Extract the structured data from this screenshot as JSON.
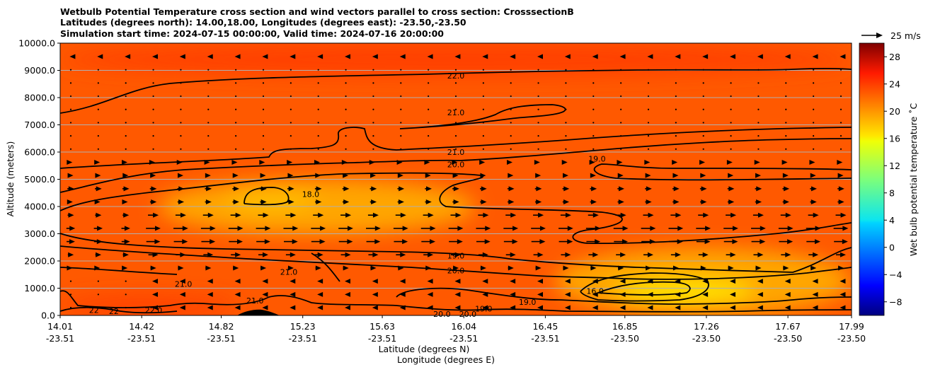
{
  "title": {
    "line1": "Wetbulb Potential Temperature cross section and wind vectors parallel to cross section: CrosssectionB",
    "line2": "Latitudes (degrees north): 14.00,18.00, Longitudes (degrees east): -23.50,-23.50",
    "line3": "Simulation start time: 2024-07-15 00:00:00, Valid time: 2024-07-16 20:00:00"
  },
  "quiver_key": {
    "label": "25 m/s"
  },
  "colorbar": {
    "label": "Wet bulb potential temperature ˚C",
    "ticks": [
      "28",
      "24",
      "20",
      "16",
      "12",
      "8",
      "4",
      "0",
      "−4",
      "−8"
    ],
    "range": [
      -10,
      30
    ],
    "colormap": "jet"
  },
  "chart_data": {
    "type": "contour",
    "title": "Wetbulb Potential Temperature cross section and wind vectors parallel to cross section: CrosssectionB",
    "xlabel_1": "Latitude (degrees N)",
    "xlabel_2": "Longitude (degrees E)",
    "ylabel": "Altitude (meters)",
    "x_tick_lat": [
      "14.01",
      "14.42",
      "14.82",
      "15.23",
      "15.63",
      "16.04",
      "16.45",
      "16.85",
      "17.26",
      "17.67",
      "17.99"
    ],
    "x_tick_lon": [
      "-23.51",
      "-23.51",
      "-23.51",
      "-23.51",
      "-23.51",
      "-23.51",
      "-23.51",
      "-23.50",
      "-23.50",
      "-23.50",
      "-23.50"
    ],
    "y_ticks": [
      "10000.0",
      "9000.0",
      "8000.0",
      "7000.0",
      "6000.0",
      "5000.0",
      "4000.0",
      "3000.0",
      "2000.0",
      "1000.0",
      "0.0"
    ],
    "ylim": [
      0,
      10000
    ],
    "xlim": [
      14.01,
      17.99
    ],
    "grid": "horizontal",
    "contour_levels": [
      16,
      17,
      18,
      19,
      20,
      21,
      22
    ],
    "contour_labels": [
      {
        "text": "22.0",
        "x": 16.0,
        "y": 8800
      },
      {
        "text": "21.0",
        "x": 16.0,
        "y": 7450
      },
      {
        "text": "21.0",
        "x": 16.0,
        "y": 6000
      },
      {
        "text": "20.0",
        "x": 16.0,
        "y": 5550
      },
      {
        "text": "19.0",
        "x": 16.71,
        "y": 5750
      },
      {
        "text": "18.0",
        "x": 15.27,
        "y": 4450
      },
      {
        "text": "19.0",
        "x": 16.0,
        "y": 2200
      },
      {
        "text": "20.0",
        "x": 16.0,
        "y": 1650
      },
      {
        "text": "21.0",
        "x": 15.16,
        "y": 1600
      },
      {
        "text": "21.0",
        "x": 14.63,
        "y": 1150
      },
      {
        "text": "21.0",
        "x": 14.99,
        "y": 550
      },
      {
        "text": "19.0",
        "x": 16.36,
        "y": 500
      },
      {
        "text": "16.0",
        "x": 16.7,
        "y": 900
      },
      {
        "text": "20.0",
        "x": 15.93,
        "y": 50
      },
      {
        "text": "20.0",
        "x": 16.06,
        "y": 50
      },
      {
        "text": "19.0",
        "x": 16.14,
        "y": 250
      },
      {
        "text": "22",
        "x": 14.18,
        "y": 200
      },
      {
        "text": "22",
        "x": 14.28,
        "y": 150
      },
      {
        "text": "22.0",
        "x": 14.48,
        "y": 200
      }
    ],
    "background_value": 21.5,
    "warm_regions": [
      {
        "value": 22.5,
        "x_range": [
          14.01,
          17.99
        ],
        "y_range": [
          8800,
          10000
        ]
      },
      {
        "value": 22.5,
        "x_range": [
          14.01,
          14.9
        ],
        "y_range": [
          0,
          700
        ]
      }
    ],
    "cool_regions": [
      {
        "value": 18.5,
        "x_range": [
          14.5,
          16.1
        ],
        "y_range": [
          3000,
          5000
        ]
      },
      {
        "value": 17.5,
        "x_range": [
          14.85,
          15.3
        ],
        "y_range": [
          3900,
          4600
        ]
      },
      {
        "value": 18.5,
        "x_range": [
          16.5,
          17.99
        ],
        "y_range": [
          0,
          2500
        ]
      },
      {
        "value": 16.0,
        "x_range": [
          16.8,
          17.5
        ],
        "y_range": [
          500,
          1300
        ]
      }
    ]
  }
}
